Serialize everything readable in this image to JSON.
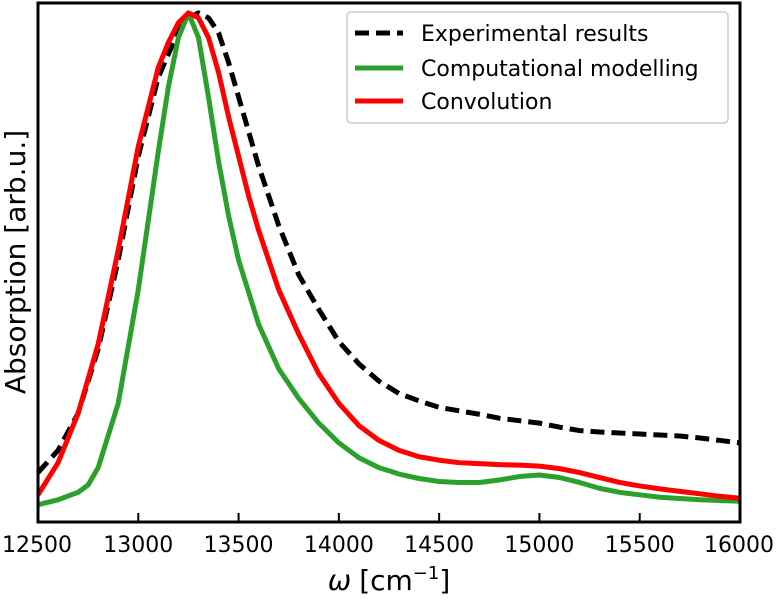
{
  "chart_data": {
    "type": "line",
    "title": "",
    "xlabel_symbol": "ω",
    "xlabel_unit_prefix": "[cm",
    "xlabel_unit_exp": "−1",
    "xlabel_unit_suffix": "]",
    "ylabel": "Absorption [arb.u.]",
    "xlim": [
      12500,
      16000
    ],
    "ylim": [
      0,
      1.05
    ],
    "xticks": [
      12500,
      13000,
      13500,
      14000,
      14500,
      15000,
      15500,
      16000
    ],
    "xtick_labels": [
      "12500",
      "13000",
      "13500",
      "14000",
      "14500",
      "15000",
      "15500",
      "16000"
    ],
    "yticks_shown": false,
    "grid": false,
    "legend_position": "top-right",
    "series": [
      {
        "name": "Experimental results",
        "color": "#000000",
        "dash": "dashed",
        "x": [
          12500,
          12600,
          12700,
          12800,
          12900,
          13000,
          13100,
          13200,
          13250,
          13300,
          13350,
          13400,
          13450,
          13500,
          13550,
          13600,
          13700,
          13800,
          13900,
          14000,
          14100,
          14200,
          14300,
          14400,
          14500,
          14600,
          14700,
          14800,
          14900,
          15000,
          15100,
          15200,
          15300,
          15400,
          15500,
          15600,
          15700,
          15800,
          15900,
          16000
        ],
        "y": [
          0.1,
          0.145,
          0.22,
          0.35,
          0.53,
          0.74,
          0.9,
          0.993,
          1.02,
          1.03,
          1.02,
          0.99,
          0.93,
          0.86,
          0.79,
          0.72,
          0.6,
          0.5,
          0.43,
          0.365,
          0.32,
          0.285,
          0.26,
          0.245,
          0.232,
          0.225,
          0.218,
          0.21,
          0.205,
          0.2,
          0.192,
          0.185,
          0.182,
          0.18,
          0.178,
          0.176,
          0.174,
          0.17,
          0.165,
          0.16
        ]
      },
      {
        "name": "Computational modelling",
        "color": "#2ca02c",
        "dash": "solid",
        "x": [
          12500,
          12600,
          12700,
          12750,
          12800,
          12900,
          13000,
          13100,
          13150,
          13200,
          13250,
          13300,
          13350,
          13400,
          13450,
          13500,
          13600,
          13700,
          13800,
          13900,
          14000,
          14100,
          14200,
          14300,
          14400,
          14500,
          14600,
          14700,
          14800,
          14900,
          15000,
          15100,
          15200,
          15300,
          15400,
          15500,
          15600,
          15800,
          16000
        ],
        "y": [
          0.035,
          0.045,
          0.06,
          0.075,
          0.11,
          0.24,
          0.47,
          0.75,
          0.88,
          0.98,
          1.03,
          0.98,
          0.86,
          0.73,
          0.62,
          0.53,
          0.4,
          0.31,
          0.25,
          0.2,
          0.16,
          0.13,
          0.11,
          0.097,
          0.088,
          0.082,
          0.08,
          0.08,
          0.085,
          0.092,
          0.095,
          0.09,
          0.08,
          0.068,
          0.06,
          0.055,
          0.05,
          0.045,
          0.042
        ]
      },
      {
        "name": "Convolution",
        "color": "#ff0000",
        "dash": "solid",
        "x": [
          12500,
          12600,
          12700,
          12800,
          12900,
          13000,
          13100,
          13150,
          13200,
          13250,
          13300,
          13350,
          13400,
          13450,
          13500,
          13550,
          13600,
          13700,
          13800,
          13900,
          14000,
          14100,
          14200,
          14300,
          14400,
          14500,
          14600,
          14700,
          14800,
          14900,
          15000,
          15100,
          15200,
          15300,
          15400,
          15500,
          15600,
          15700,
          15800,
          15900,
          16000
        ],
        "y": [
          0.055,
          0.12,
          0.22,
          0.36,
          0.55,
          0.76,
          0.92,
          0.97,
          1.01,
          1.03,
          1.02,
          0.98,
          0.91,
          0.82,
          0.74,
          0.66,
          0.59,
          0.47,
          0.38,
          0.3,
          0.24,
          0.195,
          0.165,
          0.145,
          0.132,
          0.125,
          0.12,
          0.118,
          0.116,
          0.115,
          0.113,
          0.108,
          0.1,
          0.09,
          0.08,
          0.073,
          0.067,
          0.062,
          0.057,
          0.052,
          0.048
        ]
      }
    ]
  }
}
